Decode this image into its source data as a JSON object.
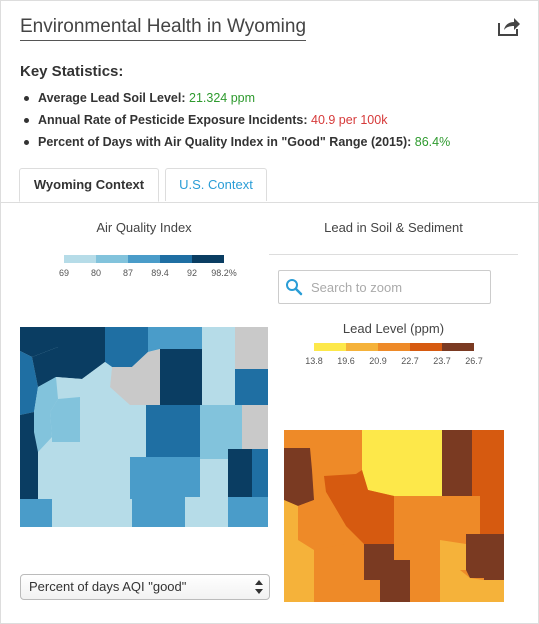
{
  "title": "Environmental Health in Wyoming",
  "share_icon": "share-icon",
  "key_statistics": {
    "heading": "Key Statistics:",
    "items": [
      {
        "label": "Average Lead Soil Level:",
        "value": "21.324 ppm",
        "color": "#2e9a2e"
      },
      {
        "label": "Annual Rate of Pesticide Exposure Incidents:",
        "value": "40.9 per 100k",
        "color": "#d63a3a"
      },
      {
        "label": "Percent of Days with Air Quality Index in \"Good\" Range (2015):",
        "value": "86.4%",
        "color": "#2e9a2e"
      }
    ]
  },
  "tabs": [
    {
      "label": "Wyoming Context",
      "active": true
    },
    {
      "label": "U.S. Context",
      "active": false
    }
  ],
  "air_quality": {
    "title": "Air Quality Index",
    "legend": {
      "colors": [
        "#b6dce8",
        "#82c3dc",
        "#4a9cc9",
        "#1f6fa3",
        "#0a3d62"
      ],
      "labels": [
        "69",
        "80",
        "87",
        "89.4",
        "92",
        "98.2%"
      ]
    }
  },
  "lead": {
    "title": "Lead in Soil & Sediment",
    "search_placeholder": "Search to zoom",
    "legend_title": "Lead Level (ppm)",
    "legend": {
      "colors": [
        "#fde84a",
        "#f5b23a",
        "#ee8a28",
        "#d65a10",
        "#7a3a22"
      ],
      "labels": [
        "13.8",
        "19.6",
        "20.9",
        "22.7",
        "23.7",
        "26.7"
      ]
    }
  },
  "select": {
    "value": "Percent of days AQI \"good\""
  }
}
